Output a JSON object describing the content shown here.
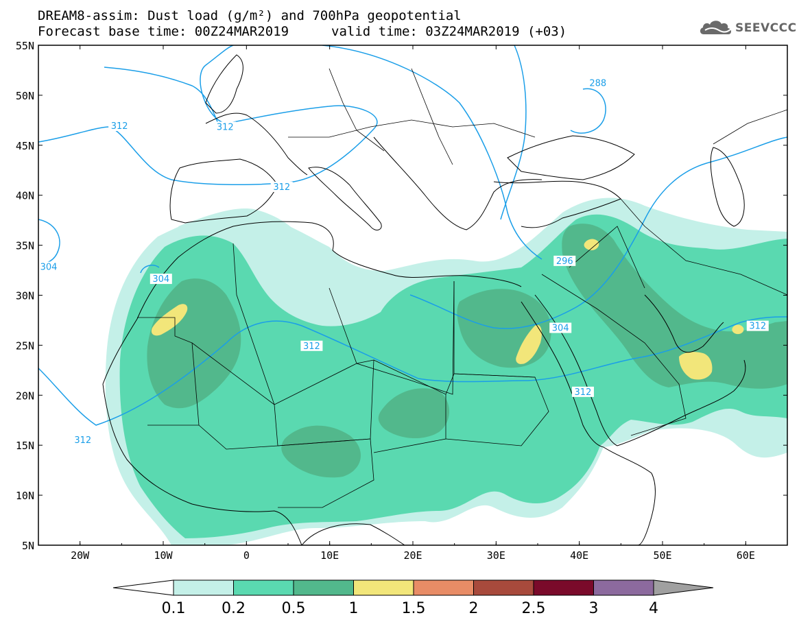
{
  "title": {
    "line1": "DREAM8-assim: Dust load (g/m²) and 700hPa geopotential",
    "line2_base": "Forecast base time: 00Z24MAR2019",
    "line2_valid": "valid time: 03Z24MAR2019 (+03)"
  },
  "logo": {
    "text": "SEEVCCC",
    "icon": "cloud-icon"
  },
  "axes": {
    "lat_labels": [
      "55N",
      "50N",
      "45N",
      "40N",
      "35N",
      "30N",
      "25N",
      "20N",
      "15N",
      "10N",
      "5N"
    ],
    "lon_labels": [
      "20W",
      "10W",
      "0",
      "10E",
      "20E",
      "30E",
      "40E",
      "50E",
      "60E"
    ],
    "lat_range": [
      5,
      55
    ],
    "lon_range": [
      -25,
      65
    ]
  },
  "contour_labels": [
    {
      "text": "312",
      "lon": -16.5,
      "lat": 46.7
    },
    {
      "text": "312",
      "lon": -3.8,
      "lat": 46.6
    },
    {
      "text": "312",
      "lon": 3,
      "lat": 40.6
    },
    {
      "text": "288",
      "lon": 41,
      "lat": 51
    },
    {
      "text": "304",
      "lon": -25,
      "lat": 32.6
    },
    {
      "text": "304",
      "lon": -11.5,
      "lat": 31.4
    },
    {
      "text": "296",
      "lon": 37,
      "lat": 33.2
    },
    {
      "text": "304",
      "lon": 36.5,
      "lat": 26.5
    },
    {
      "text": "312",
      "lon": 60.2,
      "lat": 26.7
    },
    {
      "text": "312",
      "lon": 6.6,
      "lat": 24.7
    },
    {
      "text": "312",
      "lon": 39.2,
      "lat": 20.1
    },
    {
      "text": "312",
      "lon": -20.9,
      "lat": 15.3
    }
  ],
  "legend": {
    "ticks": [
      "0.1",
      "0.2",
      "0.5",
      "1",
      "1.5",
      "2",
      "2.5",
      "3",
      "4"
    ],
    "colors": [
      "#c4f0e8",
      "#5ad9b0",
      "#52b88c",
      "#f2e67a",
      "#e88c66",
      "#a84a3c",
      "#7a0a2a",
      "#8c6a9e"
    ],
    "under_color": "#ffffff",
    "over_color": "#a0a0a0"
  },
  "colors": {
    "contour": "#1a9ee8",
    "coast": "#000000",
    "frame": "#000000"
  }
}
